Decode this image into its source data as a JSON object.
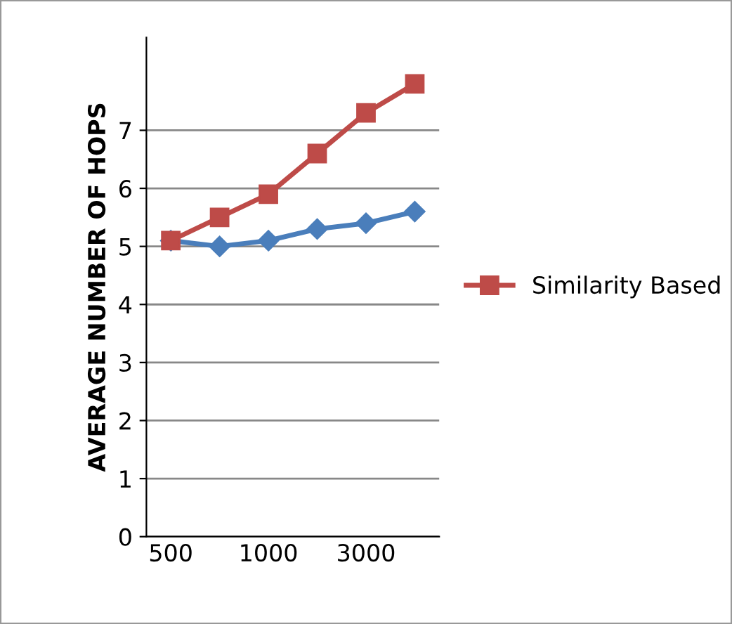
{
  "chart_data": {
    "type": "line",
    "ylabel": "AVERAGE NUMBER OF HOPS",
    "categories": [
      "500",
      null,
      "1000",
      null,
      "3000",
      null
    ],
    "series": [
      {
        "color": "#4a7ebb",
        "marker": "diamond",
        "values": [
          5.1,
          5.0,
          5.1,
          5.3,
          5.4,
          5.6
        ]
      },
      {
        "name": "Similarity Based",
        "color": "#be4b48",
        "marker": "square",
        "values": [
          5.1,
          5.5,
          5.9,
          6.6,
          7.3,
          7.8
        ]
      }
    ],
    "ylim": [
      0,
      8.6
    ],
    "yticks": [
      0,
      1,
      2,
      3,
      4,
      5,
      6,
      7
    ],
    "grid": "y",
    "legend": "right",
    "line_style": "solid"
  }
}
